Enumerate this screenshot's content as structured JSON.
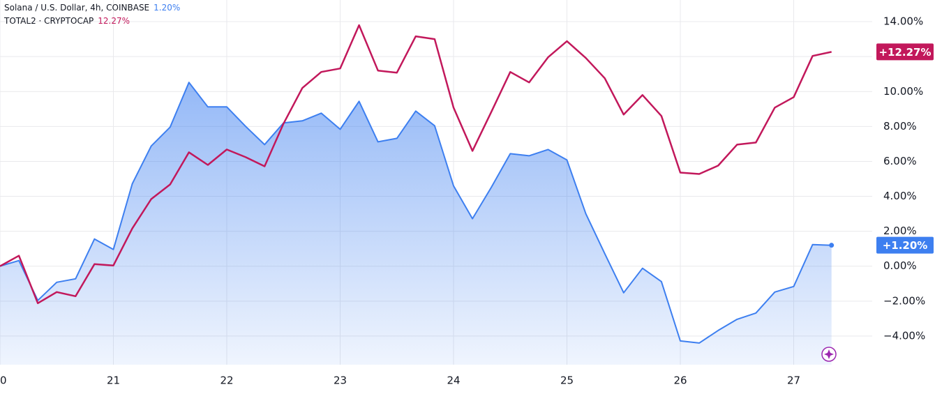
{
  "chart_data": {
    "type": "line",
    "x": [
      20,
      20.1667,
      20.3333,
      20.5,
      20.6667,
      20.8333,
      21,
      21.1667,
      21.3333,
      21.5,
      21.6667,
      21.8333,
      22,
      22.1667,
      22.3333,
      22.5,
      22.6667,
      22.8333,
      23,
      23.1667,
      23.3333,
      23.5,
      23.6667,
      23.8333,
      24,
      24.1667,
      24.3333,
      24.5,
      24.6667,
      24.8333,
      25,
      25.1667,
      25.3333,
      25.5,
      25.6667,
      25.8333,
      26,
      26.1667,
      26.3333,
      26.5,
      26.6667,
      26.8333,
      27,
      27.1667,
      27.3333
    ],
    "xlim": [
      20,
      27.6923
    ],
    "xticks": [
      20,
      21,
      22,
      23,
      24,
      25,
      26,
      27
    ],
    "ylim": [
      -5.64,
      15.24
    ],
    "yticks": [
      {
        "value": 14,
        "label": "14.00%"
      },
      {
        "value": 12,
        "label": "12.00%"
      },
      {
        "value": 10,
        "label": "10.00%"
      },
      {
        "value": 8,
        "label": "8.00%"
      },
      {
        "value": 6,
        "label": "6.00%"
      },
      {
        "value": 4,
        "label": "4.00%"
      },
      {
        "value": 2,
        "label": "2.00%"
      },
      {
        "value": 0,
        "label": "0.00%"
      },
      {
        "value": -2,
        "label": "−2.00%"
      },
      {
        "value": -4,
        "label": "−4.00%"
      }
    ],
    "grid": true,
    "series": [
      {
        "name": "Solana / U.S. Dollar, 4h, COINBASE",
        "color": "#3d7ff0",
        "fill": true,
        "legend_value": "1.20%",
        "badge_label": "+1.20%",
        "values": [
          0,
          0.32,
          -1.96,
          -0.92,
          -0.72,
          1.56,
          0.96,
          4.72,
          6.88,
          7.96,
          10.52,
          9.12,
          9.12,
          8.0,
          6.96,
          8.2,
          8.32,
          8.76,
          7.84,
          9.44,
          7.12,
          7.32,
          8.88,
          8.04,
          4.6,
          2.72,
          4.52,
          6.44,
          6.32,
          6.68,
          6.08,
          3.0,
          0.72,
          -1.52,
          -0.12,
          -0.88,
          -4.28,
          -4.4,
          -3.68,
          -3.04,
          -2.68,
          -1.48,
          -1.16,
          1.24,
          1.2
        ]
      },
      {
        "name": "TOTAL2 · CRYPTOCAP",
        "color": "#c2185b",
        "fill": false,
        "legend_value": "12.27%",
        "badge_label": "+12.27%",
        "values": [
          0,
          0.6,
          -2.12,
          -1.48,
          -1.72,
          0.12,
          0.04,
          2.16,
          3.84,
          4.68,
          6.52,
          5.8,
          6.68,
          6.24,
          5.72,
          8.16,
          10.2,
          11.12,
          11.32,
          13.8,
          11.2,
          11.08,
          13.16,
          13.0,
          9.08,
          6.6,
          8.84,
          11.12,
          10.52,
          11.96,
          12.88,
          11.92,
          10.76,
          8.68,
          9.8,
          8.6,
          5.36,
          5.28,
          5.76,
          6.96,
          7.08,
          9.08,
          9.68,
          12.04,
          12.27
        ]
      }
    ]
  }
}
